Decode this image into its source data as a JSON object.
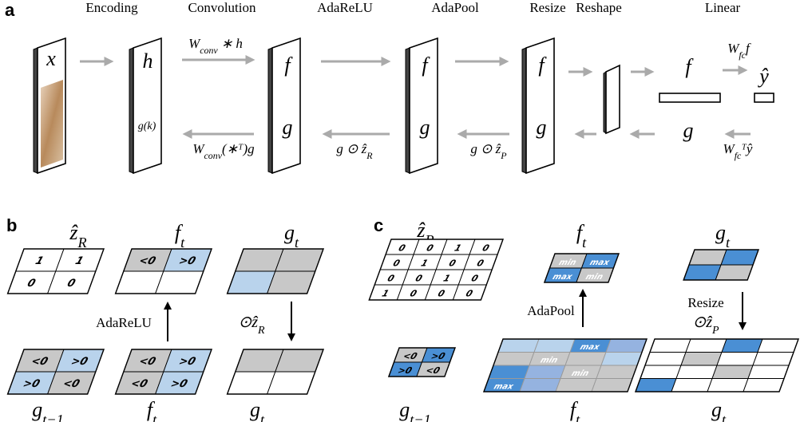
{
  "panel_a": {
    "label": "a",
    "stages": [
      "Encoding",
      "Convolution",
      "AdaReLU",
      "AdaPool",
      "Resize",
      "Reshape",
      "Linear"
    ],
    "x": "x",
    "h": "h",
    "gk": "g(k)",
    "f": "f",
    "g": "g",
    "yhat": "ŷ",
    "conv_fwd": {
      "base": "W",
      "sub": "conv",
      "rest": " ∗ h"
    },
    "conv_bwd": {
      "base": "W",
      "sub": "conv",
      "rest": "(∗ᵀ)g"
    },
    "relu_bwd": {
      "base": "g ⊙ ẑ",
      "sub": "R"
    },
    "pool_bwd": {
      "base": "g ⊙ ẑ",
      "sub": "P"
    },
    "fc_fwd": {
      "base": "W",
      "sub": "fc",
      "rest": "f"
    },
    "fc_bwd": {
      "base": "W",
      "sub": "fc",
      "rest": "ᵀŷ"
    }
  },
  "panel_b": {
    "label": "b",
    "zR": {
      "base": "ẑ",
      "sub": "R"
    },
    "ft_top": {
      "base": "f",
      "sub": "t"
    },
    "gt_top": {
      "base": "g",
      "sub": "t"
    },
    "zR_grid": [
      [
        1,
        1
      ],
      [
        0,
        0
      ]
    ],
    "ft_top_grid": [
      [
        "<0",
        ">0"
      ],
      [
        null,
        null
      ]
    ],
    "op_up": "AdaReLU",
    "op_down": {
      "base": "⊙ẑ",
      "sub": "R"
    },
    "g_prev_grid": [
      [
        "<0",
        ">0"
      ],
      [
        ">0",
        "<0"
      ]
    ],
    "ft_bottom_grid": [
      [
        "<0",
        ">0"
      ],
      [
        "<0",
        ">0"
      ]
    ],
    "g_prev": {
      "base": "g",
      "sub": "t−1"
    },
    "ft_bottom": {
      "base": "f",
      "sub": "t"
    },
    "gt_bottom": {
      "base": "g",
      "sub": "t"
    }
  },
  "panel_c": {
    "label": "c",
    "zP": {
      "base": "ẑ",
      "sub": "P"
    },
    "ft_top": {
      "base": "f",
      "sub": "t"
    },
    "gt_top": {
      "base": "g",
      "sub": "t"
    },
    "zP_grid": [
      [
        0,
        0,
        1,
        0
      ],
      [
        0,
        1,
        0,
        0
      ],
      [
        0,
        0,
        1,
        0
      ],
      [
        1,
        0,
        0,
        0
      ]
    ],
    "ft_top_grid": [
      [
        "min",
        "max"
      ],
      [
        "max",
        "min"
      ]
    ],
    "op_up": "AdaPool",
    "op_down_1": "Resize",
    "op_down_2": {
      "base": "⊙ẑ",
      "sub": "P"
    },
    "g_prev_grid": [
      [
        "<0",
        ">0"
      ],
      [
        ">0",
        "<0"
      ]
    ],
    "ft_bottom_grid": [
      [
        null,
        null,
        "max",
        null
      ],
      [
        null,
        "min",
        null,
        null
      ],
      [
        null,
        null,
        "min",
        null
      ],
      [
        "max",
        null,
        null,
        null
      ]
    ],
    "g_prev": {
      "base": "g",
      "sub": "t−1"
    },
    "ft_bottom": {
      "base": "f",
      "sub": "t"
    },
    "gt_bottom": {
      "base": "g",
      "sub": "t"
    }
  }
}
